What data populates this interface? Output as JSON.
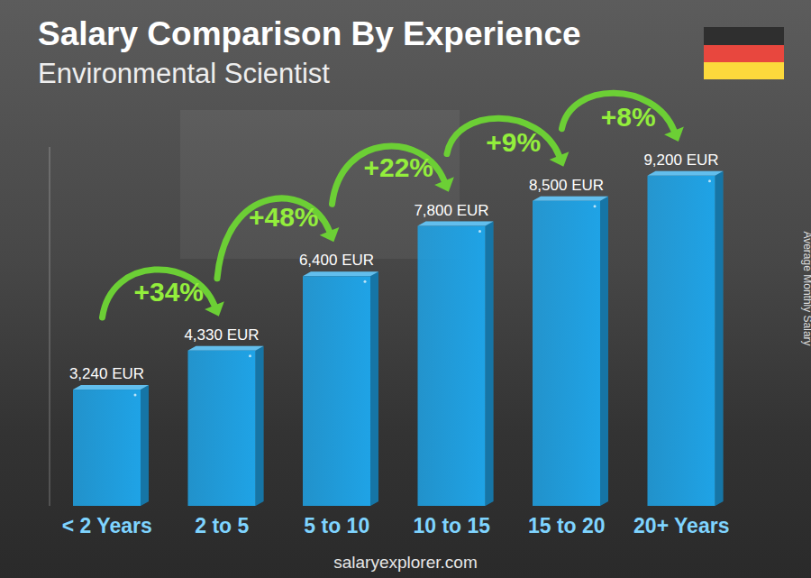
{
  "chart_data": {
    "type": "bar",
    "title": "Salary Comparison By Experience",
    "subtitle": "Environmental Scientist",
    "y_label": "Average Monthly Salary",
    "source": "salaryexplorer.com",
    "categories": [
      "< 2 Years",
      "2 to 5",
      "5 to 10",
      "10 to 15",
      "15 to 20",
      "20+ Years"
    ],
    "values": [
      3240,
      4330,
      6400,
      7800,
      8500,
      9200
    ],
    "value_labels": [
      "3,240 EUR",
      "4,330 EUR",
      "6,400 EUR",
      "7,800 EUR",
      "8,500 EUR",
      "9,200 EUR"
    ],
    "annotations": [
      "+34%",
      "+48%",
      "+22%",
      "+9%",
      "+8%"
    ],
    "color": "#1fa3e6",
    "ylim": [
      0,
      10000
    ],
    "data_labels": true,
    "tick_labels": "x",
    "grid": false
  }
}
